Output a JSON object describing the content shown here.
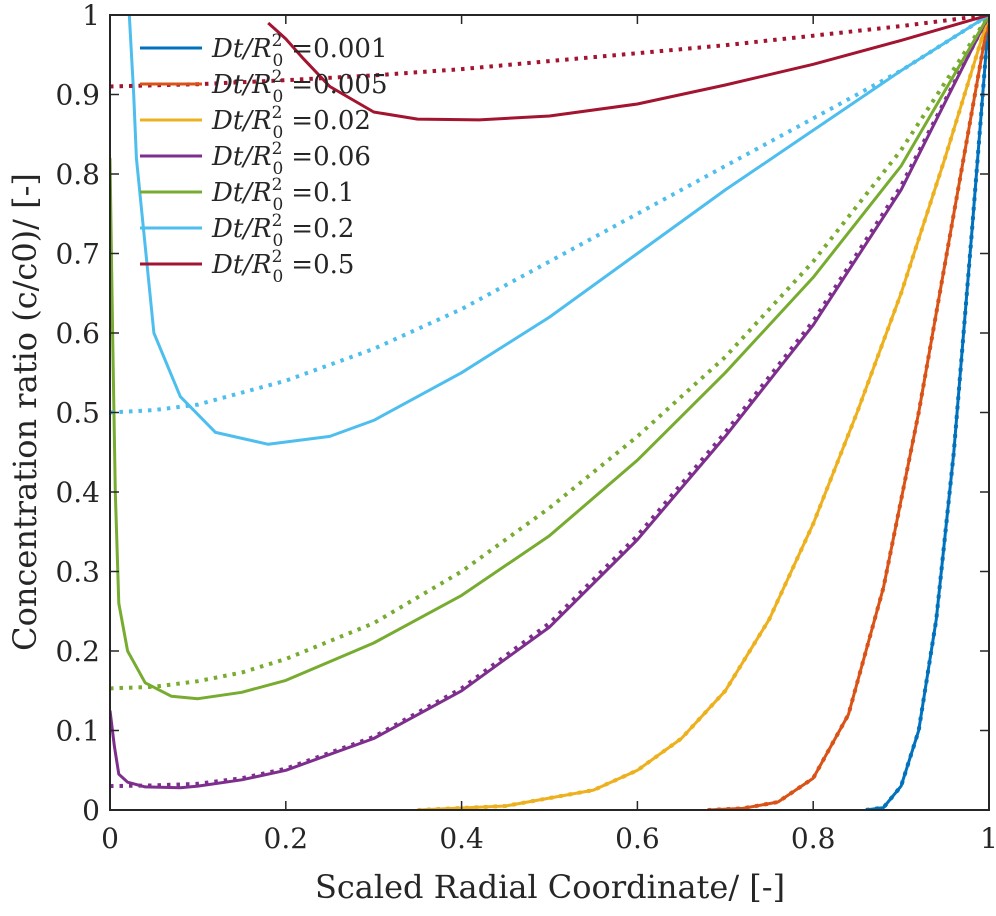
{
  "chart_data": {
    "type": "line",
    "title": "",
    "xlabel": "Scaled Radial Coordinate/ [-]",
    "ylabel": "Concentration ratio (c/c0)/ [-]",
    "xlim": [
      0,
      1
    ],
    "ylim": [
      0,
      1
    ],
    "xticks": [
      0,
      0.2,
      0.4,
      0.6,
      0.8,
      1
    ],
    "yticks": [
      0,
      0.1,
      0.2,
      0.3,
      0.4,
      0.5,
      0.6,
      0.7,
      0.8,
      0.9,
      1
    ],
    "xtick_labels": [
      "0",
      "0.2",
      "0.4",
      "0.6",
      "0.8",
      "1"
    ],
    "ytick_labels": [
      "0",
      "0.1",
      "0.2",
      "0.3",
      "0.4",
      "0.5",
      "0.6",
      "0.7",
      "0.8",
      "0.9",
      "1"
    ],
    "grid": false,
    "box": true,
    "legend_position": "top-left",
    "legend_prefix": "Dt/R",
    "legend_sup": "2",
    "legend_sub": "0",
    "series": [
      {
        "name": "0.001",
        "color": "#0072BD",
        "solid": [
          [
            0.86,
            0
          ],
          [
            0.88,
            0.003
          ],
          [
            0.9,
            0.03
          ],
          [
            0.92,
            0.1
          ],
          [
            0.94,
            0.24
          ],
          [
            0.96,
            0.45
          ],
          [
            0.98,
            0.72
          ],
          [
            1,
            1
          ]
        ],
        "dotted": [
          [
            0.86,
            0
          ],
          [
            0.88,
            0.003
          ],
          [
            0.9,
            0.03
          ],
          [
            0.92,
            0.1
          ],
          [
            0.94,
            0.24
          ],
          [
            0.96,
            0.45
          ],
          [
            0.98,
            0.72
          ],
          [
            1,
            1
          ]
        ]
      },
      {
        "name": "0.005",
        "color": "#D95319",
        "solid": [
          [
            0.68,
            0
          ],
          [
            0.72,
            0.002
          ],
          [
            0.76,
            0.01
          ],
          [
            0.8,
            0.04
          ],
          [
            0.84,
            0.12
          ],
          [
            0.88,
            0.28
          ],
          [
            0.92,
            0.5
          ],
          [
            0.96,
            0.75
          ],
          [
            1,
            1
          ]
        ],
        "dotted": [
          [
            0.68,
            0
          ],
          [
            0.72,
            0.002
          ],
          [
            0.76,
            0.01
          ],
          [
            0.8,
            0.04
          ],
          [
            0.84,
            0.12
          ],
          [
            0.88,
            0.28
          ],
          [
            0.92,
            0.5
          ],
          [
            0.96,
            0.75
          ],
          [
            1,
            1
          ]
        ]
      },
      {
        "name": "0.02",
        "color": "#EDB120",
        "solid": [
          [
            0.35,
            0
          ],
          [
            0.45,
            0.005
          ],
          [
            0.55,
            0.025
          ],
          [
            0.6,
            0.05
          ],
          [
            0.65,
            0.09
          ],
          [
            0.7,
            0.15
          ],
          [
            0.75,
            0.24
          ],
          [
            0.8,
            0.36
          ],
          [
            0.85,
            0.5
          ],
          [
            0.9,
            0.65
          ],
          [
            0.95,
            0.82
          ],
          [
            1,
            1
          ]
        ],
        "dotted": [
          [
            0.35,
            0
          ],
          [
            0.45,
            0.005
          ],
          [
            0.55,
            0.025
          ],
          [
            0.6,
            0.05
          ],
          [
            0.65,
            0.09
          ],
          [
            0.7,
            0.15
          ],
          [
            0.75,
            0.24
          ],
          [
            0.8,
            0.36
          ],
          [
            0.85,
            0.5
          ],
          [
            0.9,
            0.65
          ],
          [
            0.95,
            0.82
          ],
          [
            1,
            1
          ]
        ]
      },
      {
        "name": "0.06",
        "color": "#7E2F8E",
        "solid": [
          [
            0,
            0.125
          ],
          [
            0.005,
            0.08
          ],
          [
            0.01,
            0.045
          ],
          [
            0.02,
            0.035
          ],
          [
            0.04,
            0.029
          ],
          [
            0.08,
            0.028
          ],
          [
            0.1,
            0.03
          ],
          [
            0.15,
            0.038
          ],
          [
            0.2,
            0.05
          ],
          [
            0.3,
            0.09
          ],
          [
            0.4,
            0.15
          ],
          [
            0.5,
            0.23
          ],
          [
            0.6,
            0.34
          ],
          [
            0.7,
            0.47
          ],
          [
            0.8,
            0.61
          ],
          [
            0.9,
            0.78
          ],
          [
            1,
            1
          ]
        ],
        "dotted": [
          [
            0,
            0.03
          ],
          [
            0.05,
            0.031
          ],
          [
            0.1,
            0.033
          ],
          [
            0.15,
            0.04
          ],
          [
            0.2,
            0.052
          ],
          [
            0.3,
            0.092
          ],
          [
            0.4,
            0.153
          ],
          [
            0.5,
            0.235
          ],
          [
            0.6,
            0.345
          ],
          [
            0.7,
            0.475
          ],
          [
            0.8,
            0.615
          ],
          [
            0.9,
            0.785
          ],
          [
            1,
            1
          ]
        ]
      },
      {
        "name": "0.1",
        "color": "#77AC30",
        "solid": [
          [
            0,
            0.82
          ],
          [
            0.003,
            0.6
          ],
          [
            0.006,
            0.4
          ],
          [
            0.01,
            0.26
          ],
          [
            0.02,
            0.2
          ],
          [
            0.04,
            0.16
          ],
          [
            0.07,
            0.143
          ],
          [
            0.1,
            0.14
          ],
          [
            0.15,
            0.148
          ],
          [
            0.2,
            0.163
          ],
          [
            0.3,
            0.21
          ],
          [
            0.4,
            0.27
          ],
          [
            0.5,
            0.345
          ],
          [
            0.6,
            0.44
          ],
          [
            0.7,
            0.55
          ],
          [
            0.8,
            0.67
          ],
          [
            0.9,
            0.81
          ],
          [
            1,
            1
          ]
        ],
        "dotted": [
          [
            0,
            0.153
          ],
          [
            0.05,
            0.155
          ],
          [
            0.1,
            0.162
          ],
          [
            0.15,
            0.173
          ],
          [
            0.2,
            0.19
          ],
          [
            0.3,
            0.235
          ],
          [
            0.4,
            0.3
          ],
          [
            0.5,
            0.38
          ],
          [
            0.6,
            0.47
          ],
          [
            0.7,
            0.57
          ],
          [
            0.8,
            0.69
          ],
          [
            0.9,
            0.83
          ],
          [
            1,
            1
          ]
        ]
      },
      {
        "name": "0.2",
        "color": "#4DBEEE",
        "solid": [
          [
            0.022,
            1
          ],
          [
            0.027,
            0.9
          ],
          [
            0.03,
            0.82
          ],
          [
            0.05,
            0.6
          ],
          [
            0.08,
            0.52
          ],
          [
            0.12,
            0.475
          ],
          [
            0.18,
            0.46
          ],
          [
            0.25,
            0.47
          ],
          [
            0.3,
            0.49
          ],
          [
            0.4,
            0.55
          ],
          [
            0.5,
            0.62
          ],
          [
            0.6,
            0.7
          ],
          [
            0.7,
            0.78
          ],
          [
            0.8,
            0.855
          ],
          [
            0.9,
            0.93
          ],
          [
            1,
            1
          ]
        ],
        "dotted": [
          [
            0,
            0.5
          ],
          [
            0.05,
            0.503
          ],
          [
            0.1,
            0.51
          ],
          [
            0.2,
            0.54
          ],
          [
            0.3,
            0.58
          ],
          [
            0.4,
            0.63
          ],
          [
            0.5,
            0.69
          ],
          [
            0.6,
            0.75
          ],
          [
            0.7,
            0.81
          ],
          [
            0.8,
            0.87
          ],
          [
            0.9,
            0.93
          ],
          [
            1,
            1
          ]
        ]
      },
      {
        "name": "0.5",
        "color": "#A2142F",
        "solid": [
          [
            0.18,
            0.99
          ],
          [
            0.19,
            0.98
          ],
          [
            0.2,
            0.97
          ],
          [
            0.22,
            0.945
          ],
          [
            0.25,
            0.91
          ],
          [
            0.3,
            0.878
          ],
          [
            0.35,
            0.869
          ],
          [
            0.42,
            0.868
          ],
          [
            0.5,
            0.873
          ],
          [
            0.6,
            0.888
          ],
          [
            0.7,
            0.912
          ],
          [
            0.8,
            0.938
          ],
          [
            0.9,
            0.968
          ],
          [
            1,
            1
          ]
        ],
        "dotted": [
          [
            0,
            0.91
          ],
          [
            0.1,
            0.913
          ],
          [
            0.2,
            0.918
          ],
          [
            0.3,
            0.924
          ],
          [
            0.4,
            0.932
          ],
          [
            0.5,
            0.942
          ],
          [
            0.6,
            0.952
          ],
          [
            0.7,
            0.962
          ],
          [
            0.8,
            0.974
          ],
          [
            0.9,
            0.986
          ],
          [
            1,
            1
          ]
        ]
      }
    ]
  }
}
